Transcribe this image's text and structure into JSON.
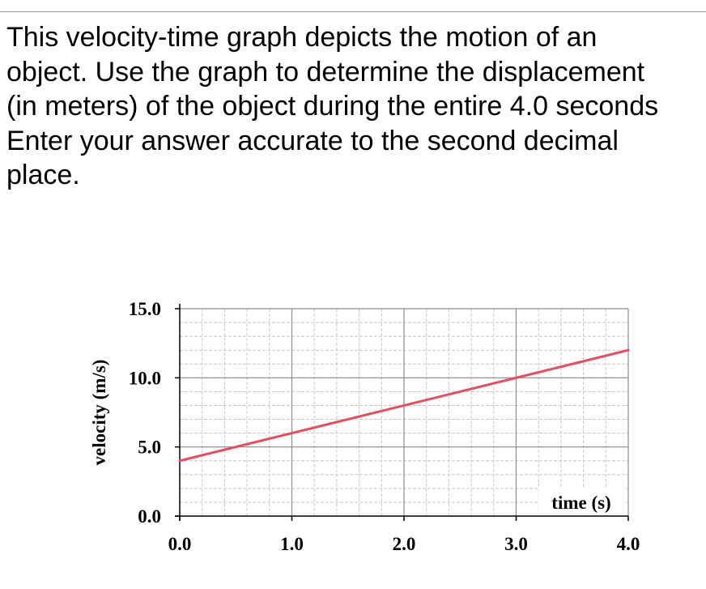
{
  "question": {
    "lines": [
      "This velocity-time graph depicts the motion of an",
      "object. Use the graph to determine the displacement",
      "(in meters) of the object during the entire 4.0 seconds",
      "Enter your answer accurate to the second decimal",
      "place."
    ]
  },
  "chart_data": {
    "type": "line",
    "xlabel": "time (s)",
    "ylabel": "velocity (m/s)",
    "xlim": [
      0,
      4.0
    ],
    "ylim": [
      0,
      15.0
    ],
    "x_tick_labels": [
      "0.0",
      "1.0",
      "2.0",
      "3.0",
      "4.0"
    ],
    "y_tick_labels": [
      "0.0",
      "5.0",
      "10.0",
      "15.0"
    ],
    "grid": true,
    "series": [
      {
        "x": [
          0.0,
          4.0
        ],
        "y": [
          4.0,
          12.0
        ],
        "color": "#e05060"
      }
    ]
  }
}
